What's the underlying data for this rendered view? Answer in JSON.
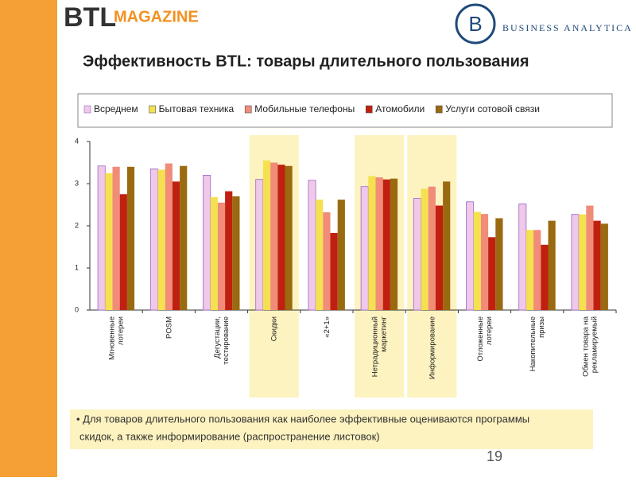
{
  "logos": {
    "left_main": "BTL",
    "left_sub": "MAGAZINE",
    "right_mark": "B",
    "right_text": "BUSINESS ANALYTICA"
  },
  "chart_data": {
    "type": "bar",
    "title": "Эффективность BTL: товары длительного пользования",
    "categories": [
      "Мгновенные\nлотереи",
      "POSM",
      "Дегустации,\nтестирование",
      "Скидки",
      "«2+1»",
      "Нетрадиционный\nмаркетинг",
      "Информирование",
      "Отложенные\nлотереи",
      "Накопительные\nпризы",
      "Обмен товара на\nрекламируемый"
    ],
    "series": [
      {
        "name": "Всреднем",
        "color": "#f0c8e8",
        "values": [
          3.42,
          3.35,
          3.2,
          3.1,
          3.08,
          2.93,
          2.65,
          2.57,
          2.52,
          2.27
        ]
      },
      {
        "name": "Бытовая техника",
        "color": "#f5e050",
        "values": [
          3.25,
          3.33,
          2.68,
          3.55,
          2.62,
          3.18,
          2.88,
          2.33,
          1.9,
          2.27
        ]
      },
      {
        "name": "Мобильные телефоны",
        "color": "#f08c78",
        "values": [
          3.4,
          3.48,
          2.55,
          3.5,
          2.32,
          3.15,
          2.93,
          2.28,
          1.9,
          2.48
        ]
      },
      {
        "name": "Атомобили",
        "color": "#c02010",
        "values": [
          2.75,
          3.05,
          2.82,
          3.45,
          1.83,
          3.1,
          2.48,
          1.73,
          1.55,
          2.12
        ]
      },
      {
        "name": "Услуги сотовой связи",
        "color": "#9a6a10",
        "values": [
          3.4,
          3.42,
          2.7,
          3.42,
          2.62,
          3.12,
          3.05,
          2.18,
          2.12,
          2.05
        ]
      }
    ],
    "ylim": [
      0,
      4
    ],
    "yticks": [
      0,
      1,
      2,
      3,
      4
    ],
    "grid": false,
    "highlight": [
      3,
      5,
      6
    ],
    "highlight_color": "#fdf3c0"
  },
  "note": {
    "lines": [
      "• Для товаров длительного пользования как наиболее эффективные оцениваются программы",
      "скидок, а также информирование (распространение листовок)"
    ]
  },
  "page_number": "19"
}
